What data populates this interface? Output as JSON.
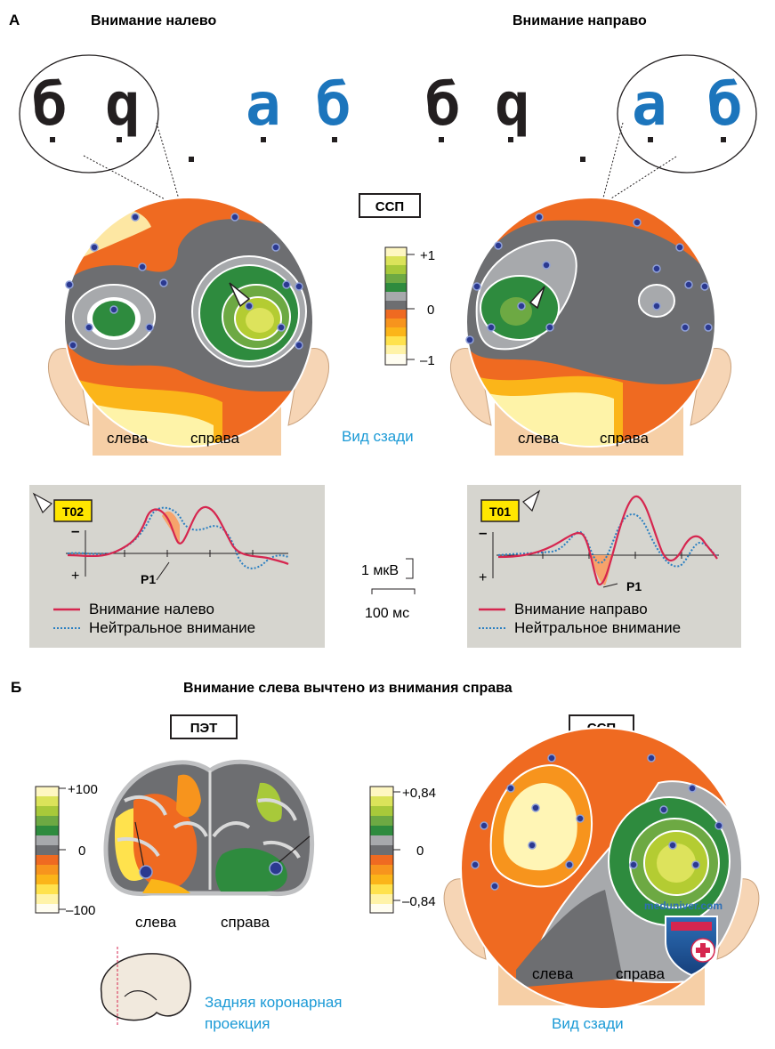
{
  "panel_a": {
    "letter": "А",
    "title_left": "Внимание налево",
    "title_right": "Внимание направо",
    "erp_box": "ССП",
    "scale_top": "+1",
    "scale_mid": "0",
    "scale_bot": "–1",
    "label_left": "слева",
    "label_right": "справа",
    "view_back": "Вид сзади",
    "glyphs_black": "б",
    "glyphs_black2": "q",
    "glyphs_blue": "a",
    "glyphs_blue2": "б",
    "chart_left": {
      "electrode": "T02",
      "peak": "P1",
      "legend_1": "Внимание налево",
      "legend_2": "Нейтральное внимание",
      "minus": "–",
      "plus": "+"
    },
    "chart_right": {
      "electrode": "T01",
      "peak": "P1",
      "legend_1": "Внимание направо",
      "legend_2": "Нейтральное внимание",
      "minus": "–",
      "plus": "+"
    },
    "scale_amp": "1 мкВ",
    "scale_time": "100 мс"
  },
  "panel_b": {
    "letter": "Б",
    "title": "Внимание слева вычтено из внимания справа",
    "pet_box": "ПЭТ",
    "erp_box": "ССП",
    "pet_top": "+100",
    "pet_mid": "0",
    "pet_bot": "–100",
    "erp_top": "+0,84",
    "erp_mid": "0",
    "erp_bot": "–0,84",
    "label_left": "слева",
    "label_right": "справа",
    "coronal": "Задняя коронарная",
    "coronal2": "проекция",
    "view_back": "Вид сзади",
    "watermark": "meduniver.com"
  },
  "colors": {
    "orange": "#ef6a21",
    "gray": "#6d6e71",
    "green": "#2e8b3e",
    "yellow_green": "#c8d93c",
    "blue_text": "#1b9ad6",
    "red_line": "#d6264f",
    "blue_line": "#2a7fc1",
    "chart_bg": "#d6d5cf",
    "label_yellow": "#ffe600"
  }
}
